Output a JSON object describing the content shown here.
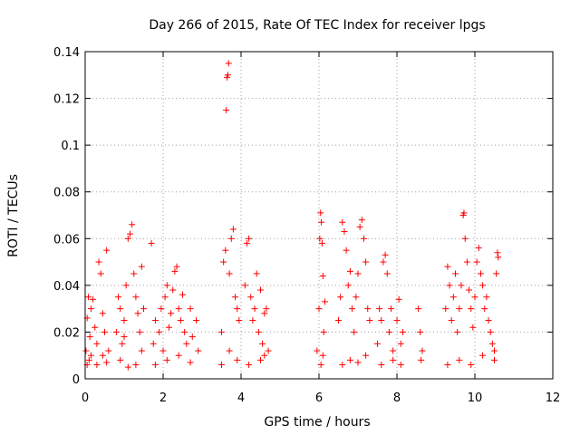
{
  "chart_data": {
    "type": "scatter",
    "title": "Day 266 of 2015, Rate Of TEC Index for receiver lpgs",
    "xlabel": "GPS time / hours",
    "ylabel": "ROTI / TECUs",
    "xlim": [
      0,
      12
    ],
    "ylim": [
      0,
      0.14
    ],
    "xticks": [
      "0",
      "2",
      "4",
      "6",
      "8",
      "10",
      "12"
    ],
    "yticks": [
      "0",
      "0.02",
      "0.04",
      "0.06",
      "0.08",
      "0.1",
      "0.12",
      "0.14"
    ],
    "grid": true,
    "marker": "+",
    "color": "#ff0000",
    "series": [
      {
        "name": "ROTI",
        "points": [
          [
            0.02,
            0.012
          ],
          [
            0.05,
            0.026
          ],
          [
            0.08,
            0.035
          ],
          [
            0.1,
            0.008
          ],
          [
            0.12,
            0.018
          ],
          [
            0.15,
            0.03
          ],
          [
            0.2,
            0.034
          ],
          [
            0.25,
            0.022
          ],
          [
            0.3,
            0.015
          ],
          [
            0.35,
            0.05
          ],
          [
            0.4,
            0.045
          ],
          [
            0.45,
            0.028
          ],
          [
            0.5,
            0.02
          ],
          [
            0.55,
            0.055
          ],
          [
            0.6,
            0.012
          ],
          [
            0.05,
            0.006
          ],
          [
            0.15,
            0.01
          ],
          [
            0.3,
            0.006
          ],
          [
            0.45,
            0.01
          ],
          [
            0.55,
            0.007
          ],
          [
            0.8,
            0.02
          ],
          [
            0.85,
            0.035
          ],
          [
            0.9,
            0.03
          ],
          [
            0.95,
            0.015
          ],
          [
            1.0,
            0.025
          ],
          [
            1.05,
            0.04
          ],
          [
            1.1,
            0.06
          ],
          [
            1.15,
            0.062
          ],
          [
            1.2,
            0.066
          ],
          [
            1.25,
            0.045
          ],
          [
            1.3,
            0.035
          ],
          [
            1.35,
            0.028
          ],
          [
            1.4,
            0.02
          ],
          [
            1.45,
            0.048
          ],
          [
            1.5,
            0.03
          ],
          [
            0.9,
            0.008
          ],
          [
            1.1,
            0.005
          ],
          [
            1.3,
            0.006
          ],
          [
            1.45,
            0.012
          ],
          [
            1.0,
            0.018
          ],
          [
            1.7,
            0.058
          ],
          [
            1.75,
            0.015
          ],
          [
            1.8,
            0.025
          ],
          [
            1.9,
            0.02
          ],
          [
            1.95,
            0.03
          ],
          [
            2.0,
            0.012
          ],
          [
            2.05,
            0.035
          ],
          [
            2.1,
            0.04
          ],
          [
            2.15,
            0.022
          ],
          [
            2.2,
            0.028
          ],
          [
            2.25,
            0.038
          ],
          [
            2.3,
            0.046
          ],
          [
            2.35,
            0.048
          ],
          [
            2.4,
            0.03
          ],
          [
            2.45,
            0.025
          ],
          [
            2.5,
            0.036
          ],
          [
            2.55,
            0.02
          ],
          [
            2.6,
            0.015
          ],
          [
            2.7,
            0.03
          ],
          [
            2.75,
            0.018
          ],
          [
            2.85,
            0.025
          ],
          [
            2.9,
            0.012
          ],
          [
            1.8,
            0.006
          ],
          [
            2.1,
            0.008
          ],
          [
            2.4,
            0.01
          ],
          [
            2.7,
            0.007
          ],
          [
            3.5,
            0.02
          ],
          [
            3.55,
            0.05
          ],
          [
            3.6,
            0.055
          ],
          [
            3.62,
            0.115
          ],
          [
            3.64,
            0.129
          ],
          [
            3.66,
            0.13
          ],
          [
            3.68,
            0.135
          ],
          [
            3.7,
            0.045
          ],
          [
            3.75,
            0.06
          ],
          [
            3.8,
            0.064
          ],
          [
            3.85,
            0.035
          ],
          [
            3.9,
            0.03
          ],
          [
            3.95,
            0.025
          ],
          [
            3.5,
            0.006
          ],
          [
            3.7,
            0.012
          ],
          [
            3.9,
            0.008
          ],
          [
            4.1,
            0.04
          ],
          [
            4.15,
            0.058
          ],
          [
            4.2,
            0.06
          ],
          [
            4.25,
            0.035
          ],
          [
            4.3,
            0.025
          ],
          [
            4.35,
            0.03
          ],
          [
            4.4,
            0.045
          ],
          [
            4.45,
            0.02
          ],
          [
            4.5,
            0.038
          ],
          [
            4.55,
            0.015
          ],
          [
            4.6,
            0.028
          ],
          [
            4.65,
            0.03
          ],
          [
            4.7,
            0.012
          ],
          [
            4.2,
            0.006
          ],
          [
            4.5,
            0.008
          ],
          [
            4.6,
            0.01
          ],
          [
            5.95,
            0.012
          ],
          [
            6.0,
            0.03
          ],
          [
            6.02,
            0.06
          ],
          [
            6.04,
            0.071
          ],
          [
            6.06,
            0.067
          ],
          [
            6.08,
            0.058
          ],
          [
            6.1,
            0.044
          ],
          [
            6.12,
            0.02
          ],
          [
            6.15,
            0.033
          ],
          [
            6.05,
            0.006
          ],
          [
            6.1,
            0.01
          ],
          [
            6.5,
            0.025
          ],
          [
            6.55,
            0.035
          ],
          [
            6.6,
            0.067
          ],
          [
            6.65,
            0.063
          ],
          [
            6.7,
            0.055
          ],
          [
            6.75,
            0.04
          ],
          [
            6.8,
            0.046
          ],
          [
            6.85,
            0.03
          ],
          [
            6.9,
            0.02
          ],
          [
            6.95,
            0.035
          ],
          [
            7.0,
            0.045
          ],
          [
            7.05,
            0.065
          ],
          [
            7.1,
            0.068
          ],
          [
            7.15,
            0.06
          ],
          [
            7.2,
            0.05
          ],
          [
            7.25,
            0.03
          ],
          [
            7.3,
            0.025
          ],
          [
            6.6,
            0.006
          ],
          [
            6.8,
            0.008
          ],
          [
            7.0,
            0.007
          ],
          [
            7.2,
            0.01
          ],
          [
            7.5,
            0.015
          ],
          [
            7.55,
            0.03
          ],
          [
            7.6,
            0.025
          ],
          [
            7.65,
            0.05
          ],
          [
            7.7,
            0.053
          ],
          [
            7.75,
            0.045
          ],
          [
            7.8,
            0.02
          ],
          [
            7.85,
            0.03
          ],
          [
            7.9,
            0.012
          ],
          [
            8.0,
            0.025
          ],
          [
            8.05,
            0.034
          ],
          [
            8.1,
            0.015
          ],
          [
            8.15,
            0.02
          ],
          [
            7.6,
            0.006
          ],
          [
            7.9,
            0.008
          ],
          [
            8.1,
            0.006
          ],
          [
            8.55,
            0.03
          ],
          [
            8.6,
            0.02
          ],
          [
            8.65,
            0.012
          ],
          [
            8.62,
            0.008
          ],
          [
            9.25,
            0.03
          ],
          [
            9.3,
            0.048
          ],
          [
            9.35,
            0.04
          ],
          [
            9.4,
            0.025
          ],
          [
            9.45,
            0.035
          ],
          [
            9.5,
            0.045
          ],
          [
            9.55,
            0.02
          ],
          [
            9.6,
            0.03
          ],
          [
            9.65,
            0.04
          ],
          [
            9.7,
            0.07
          ],
          [
            9.72,
            0.071
          ],
          [
            9.75,
            0.06
          ],
          [
            9.8,
            0.05
          ],
          [
            9.85,
            0.038
          ],
          [
            9.9,
            0.03
          ],
          [
            9.95,
            0.022
          ],
          [
            10.0,
            0.035
          ],
          [
            10.05,
            0.05
          ],
          [
            10.1,
            0.056
          ],
          [
            10.15,
            0.045
          ],
          [
            10.2,
            0.04
          ],
          [
            10.25,
            0.03
          ],
          [
            10.3,
            0.035
          ],
          [
            10.35,
            0.025
          ],
          [
            10.4,
            0.02
          ],
          [
            10.45,
            0.015
          ],
          [
            10.5,
            0.012
          ],
          [
            10.55,
            0.045
          ],
          [
            10.58,
            0.054
          ],
          [
            10.6,
            0.052
          ],
          [
            9.3,
            0.006
          ],
          [
            9.6,
            0.008
          ],
          [
            9.9,
            0.006
          ],
          [
            10.2,
            0.01
          ],
          [
            10.5,
            0.008
          ]
        ]
      }
    ]
  }
}
